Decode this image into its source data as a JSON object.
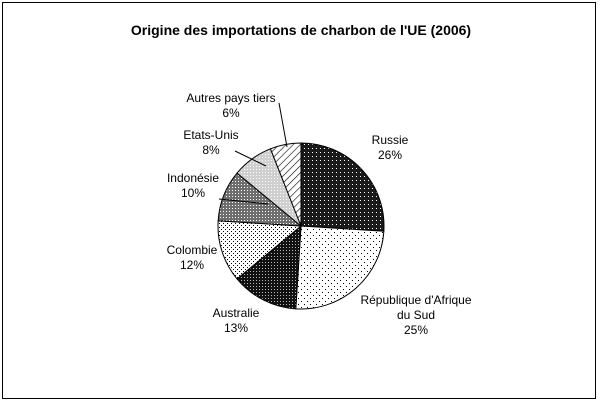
{
  "chart_data": {
    "type": "pie",
    "title": "Origine des importations de charbon de l'UE (2006)",
    "start_angle_deg": 0,
    "direction": "clockwise",
    "slices": [
      {
        "name": "Russie",
        "value": 26,
        "value_label": "26%",
        "fill": "#222222",
        "pattern": "dense-dots-dark"
      },
      {
        "name": "République d'Afrique du Sud",
        "name_lines": [
          "République d'Afrique",
          "du Sud"
        ],
        "value": 25,
        "value_label": "25%",
        "fill": "#ffffff",
        "pattern": "sparse-dots"
      },
      {
        "name": "Australie",
        "value": 13,
        "value_label": "13%",
        "fill": "#333333",
        "pattern": "dark-dots"
      },
      {
        "name": "Colombie",
        "value": 12,
        "value_label": "12%",
        "fill": "#f0f0f0",
        "pattern": "light-dots"
      },
      {
        "name": "Indonésie",
        "value": 10,
        "value_label": "10%",
        "fill": "#8c8c8c",
        "pattern": "gray-dots"
      },
      {
        "name": "Etats-Unis",
        "value": 8,
        "value_label": "8%",
        "fill": "#d8d8d8",
        "pattern": "light-gray-dots"
      },
      {
        "name": "Autres pays tiers",
        "value": 6,
        "value_label": "6%",
        "fill": "#ffffff",
        "pattern": "diagonal-hatch"
      }
    ]
  }
}
